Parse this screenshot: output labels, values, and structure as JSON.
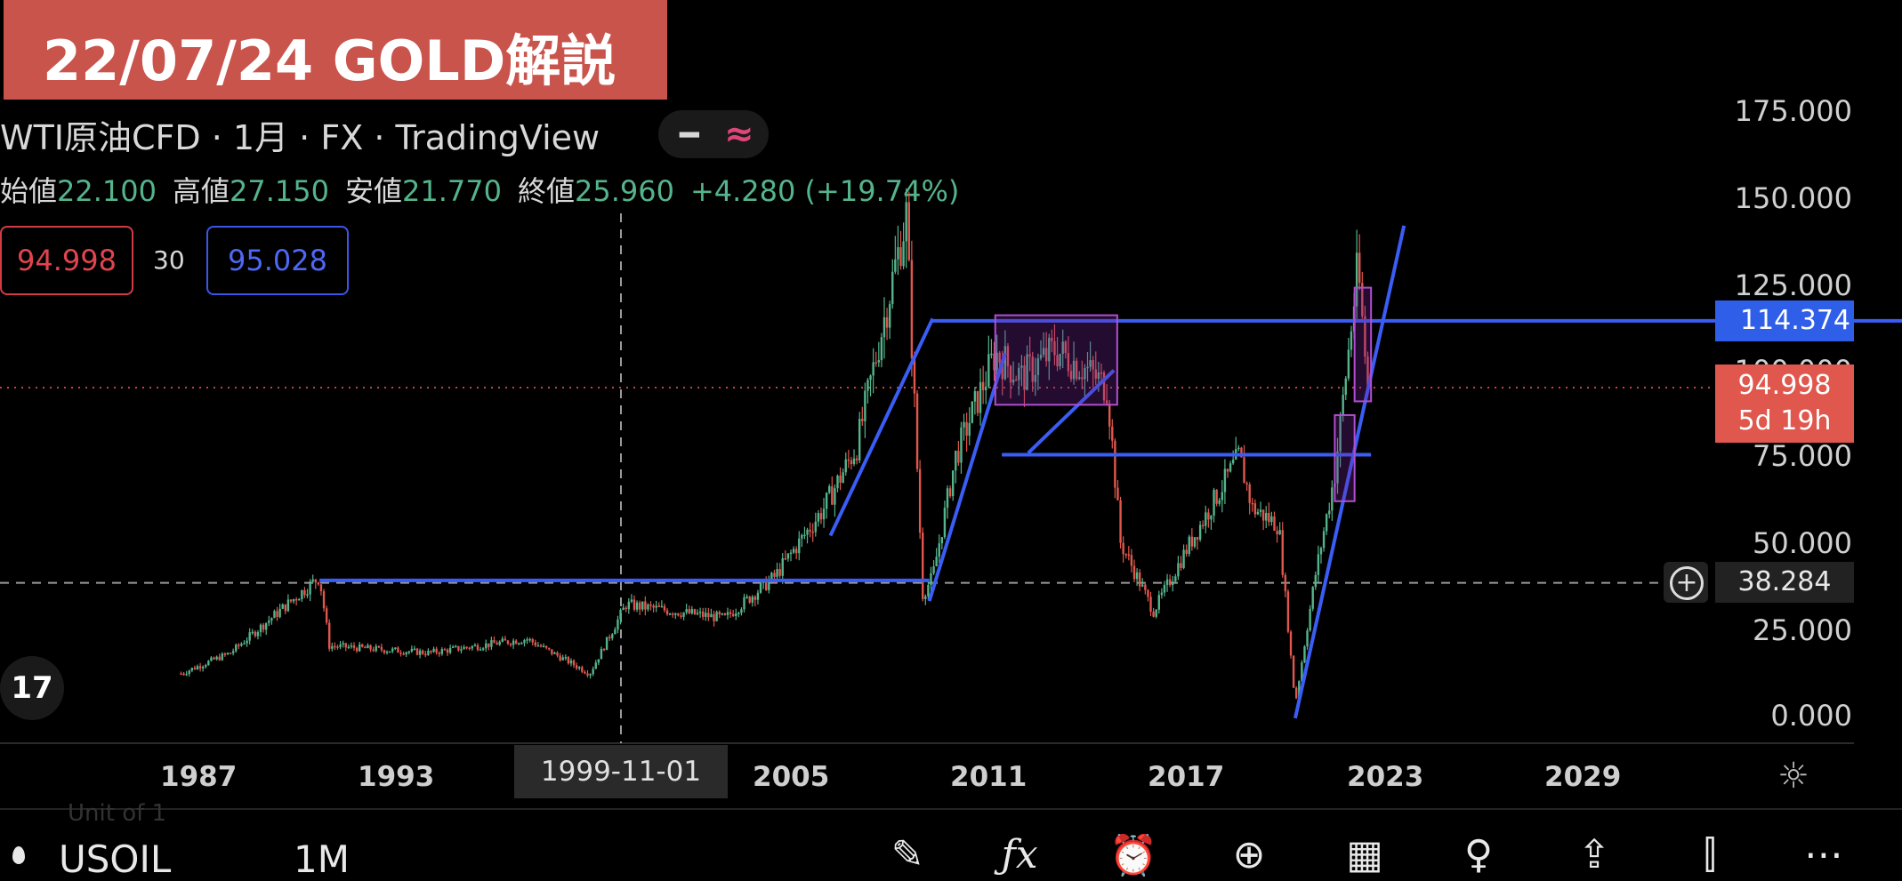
{
  "banner": {
    "title": "22/07/24 GOLD解説"
  },
  "legend": {
    "symbol": "WTI原油CFD",
    "sep1": " · ",
    "interval": "1月",
    "sep2": " · ",
    "exchange": "FX",
    "sep3": " · ",
    "provider": "TradingView"
  },
  "ohlc": {
    "open_label": "始値",
    "open": "22.100",
    "high_label": "高値",
    "high": "27.150",
    "low_label": "安値",
    "low": "21.770",
    "close_label": "終値",
    "close": "25.960",
    "change": "+4.280 (+19.74%)"
  },
  "trade": {
    "sell": "94.998",
    "qty": "30",
    "buy": "95.028"
  },
  "price_axis": [
    "175.000",
    "150.000",
    "125.000",
    "100.000",
    "75.000",
    "50.000",
    "25.000",
    "0.000"
  ],
  "price_tags": {
    "hline": "114.374",
    "last_price": "94.998",
    "countdown": "5d 19h",
    "crosshair": "38.284"
  },
  "time_axis": [
    "1987",
    "1993",
    "2005",
    "2011",
    "2017",
    "2023",
    "2029"
  ],
  "crosshair_date": "1999-11-01",
  "bottom": {
    "symbol": "USOIL",
    "timeframe": "1M",
    "ghost": "Unit of 1"
  },
  "colors": {
    "banner": "#c9544c",
    "up": "#55b48c",
    "down": "#e0574d",
    "drawing": "#3a5df5",
    "rect": "#b04fd0"
  },
  "toolbar_icons": [
    "pencil-icon",
    "fx-icon",
    "alarm-icon",
    "plus-circle-icon",
    "grid-icon",
    "lightbulb-icon",
    "share-icon",
    "candles-icon",
    "more-icon"
  ],
  "chart_data": {
    "type": "candlestick",
    "title": "",
    "xlabel": "",
    "ylabel": "",
    "ylim": [
      0,
      175
    ],
    "x_ticks": [
      "1987",
      "1993",
      "2005",
      "2011",
      "2017",
      "2023",
      "2029"
    ],
    "y_ticks": [
      0,
      25,
      50,
      75,
      100,
      125,
      150,
      175
    ],
    "series": [
      {
        "name": "",
        "x": [
          1986.5,
          1988,
          1990.7,
          1991,
          1994,
          1997,
          1998.9,
          2000,
          2003,
          2004.5,
          2006,
          2007,
          2008.5,
          2009,
          2009.3,
          2010,
          2011.2,
          2012,
          2013,
          2014,
          2014.6,
          2015,
          2016,
          2017,
          2018.6,
          2019,
          2019.8,
          2020.3,
          2020.9,
          2021.5,
          2022.2,
          2022.5
        ],
        "values": [
          12,
          18,
          40,
          20,
          18,
          22,
          12,
          32,
          28,
          40,
          60,
          78,
          145,
          35,
          40,
          75,
          105,
          98,
          106,
          100,
          95,
          50,
          30,
          48,
          75,
          60,
          55,
          3,
          40,
          70,
          130,
          95
        ]
      }
    ],
    "horizontal_lines": [
      114.374,
      75.5,
      39,
      95
    ]
  }
}
